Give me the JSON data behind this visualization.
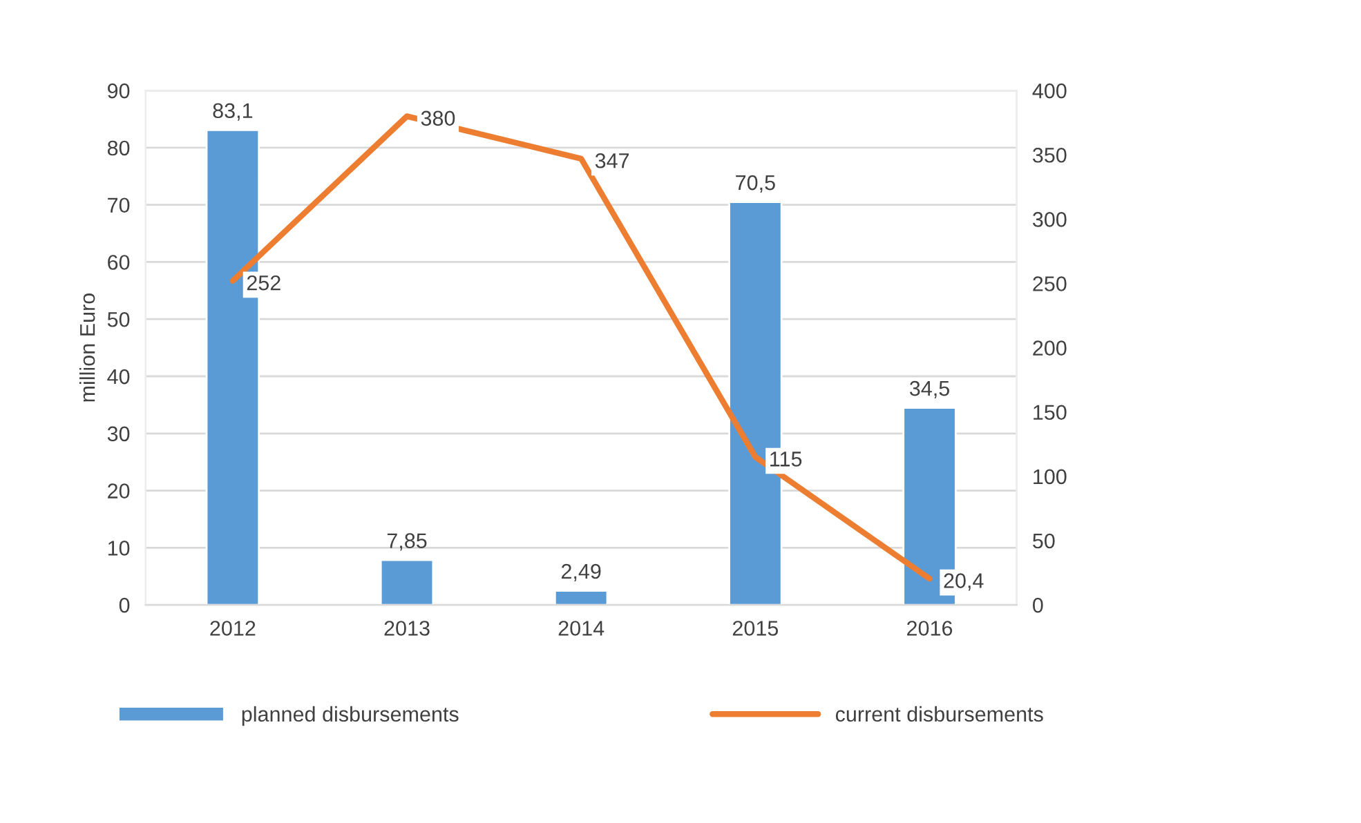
{
  "chart_data": {
    "type": "bar",
    "categories": [
      "2012",
      "2013",
      "2014",
      "2015",
      "2016"
    ],
    "ylabel": "million Euro",
    "series": [
      {
        "name": "planned disbursements",
        "color": "#5b9bd5",
        "values": [
          83.1,
          7.85,
          2.49,
          70.5,
          34.5
        ],
        "value_labels": [
          "83,1",
          "7,85",
          "2,49",
          "70,5",
          "34,5"
        ]
      },
      {
        "name": "current disbursements",
        "type": "line",
        "axis": "y2",
        "color": "#ed7d31",
        "values": [
          252,
          380,
          347,
          115,
          20.4
        ],
        "value_labels": [
          "252",
          "380",
          "347",
          "115",
          "20,4"
        ]
      }
    ],
    "ylim": [
      0,
      90
    ],
    "yticks": [
      0,
      10,
      20,
      30,
      40,
      50,
      60,
      70,
      80,
      90
    ],
    "y2lim": [
      0,
      400
    ],
    "y2ticks": [
      0,
      50,
      100,
      150,
      200,
      250,
      300,
      350,
      400
    ],
    "grid": "y",
    "legend": "bottom",
    "marker": "none",
    "line_style": "solid"
  }
}
